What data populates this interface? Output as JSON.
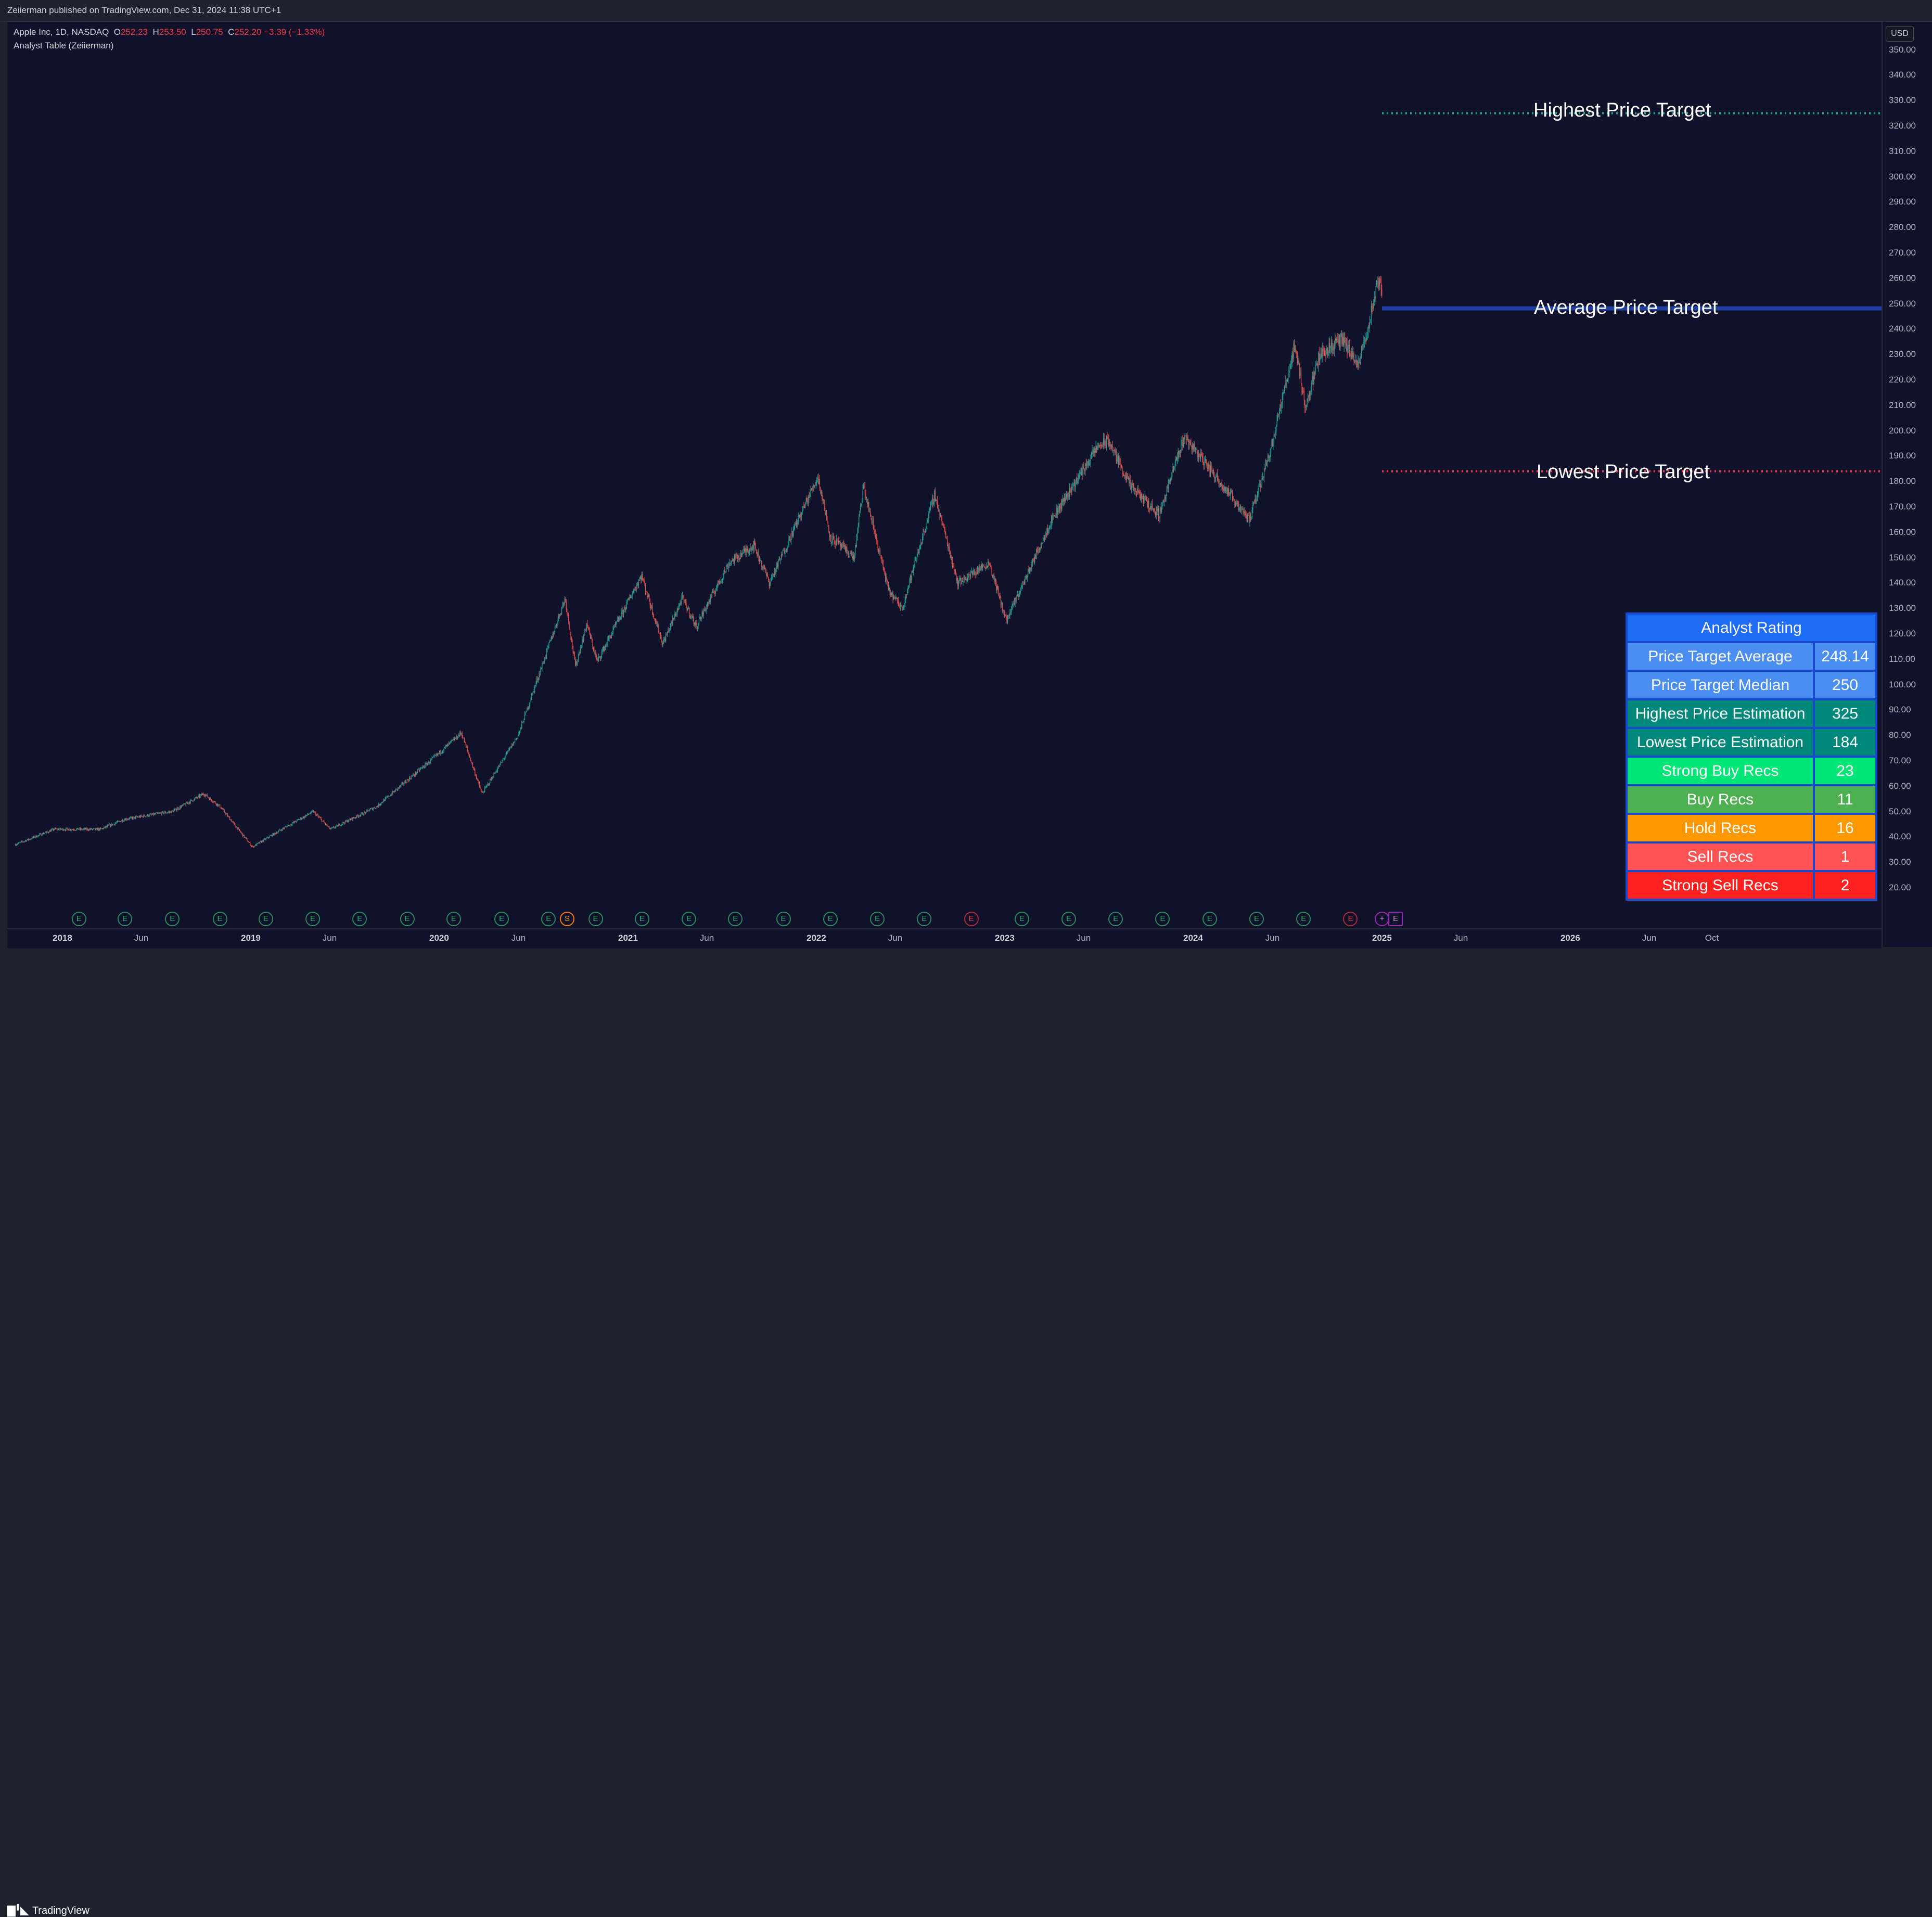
{
  "header": {
    "publish_line": "Zeiierman published on TradingView.com, Dec 31, 2024 11:38 UTC+1"
  },
  "legend": {
    "symbol": "Apple Inc, 1D, NASDAQ",
    "open_label": "O",
    "open": "252.23",
    "high_label": "H",
    "high": "253.50",
    "low_label": "L",
    "low": "250.75",
    "close_label": "C",
    "close": "252.20",
    "change": "−3.39 (−1.33%)",
    "indicator": "Analyst Table (Zeiierman)"
  },
  "price_scale": {
    "currency": "USD",
    "ticks": [
      "350.00",
      "340.00",
      "330.00",
      "320.00",
      "310.00",
      "300.00",
      "290.00",
      "280.00",
      "270.00",
      "260.00",
      "250.00",
      "240.00",
      "230.00",
      "220.00",
      "210.00",
      "200.00",
      "190.00",
      "180.00",
      "170.00",
      "160.00",
      "150.00",
      "140.00",
      "130.00",
      "120.00",
      "110.00",
      "100.00",
      "90.00",
      "80.00",
      "70.00",
      "60.00",
      "50.00",
      "40.00",
      "30.00",
      "20.00"
    ]
  },
  "time_axis": {
    "labels": [
      {
        "text": "2018",
        "year": true
      },
      {
        "text": "Jun",
        "year": false
      },
      {
        "text": "2019",
        "year": true
      },
      {
        "text": "Jun",
        "year": false
      },
      {
        "text": "2020",
        "year": true
      },
      {
        "text": "Jun",
        "year": false
      },
      {
        "text": "2021",
        "year": true
      },
      {
        "text": "Jun",
        "year": false
      },
      {
        "text": "2022",
        "year": true
      },
      {
        "text": "Jun",
        "year": false
      },
      {
        "text": "2023",
        "year": true
      },
      {
        "text": "Jun",
        "year": false
      },
      {
        "text": "2024",
        "year": true
      },
      {
        "text": "Jun",
        "year": false
      },
      {
        "text": "2025",
        "year": true
      },
      {
        "text": "Jun",
        "year": false
      },
      {
        "text": "2026",
        "year": true
      },
      {
        "text": "Jun",
        "year": false
      },
      {
        "text": "Oct",
        "year": false
      }
    ]
  },
  "targets": {
    "highest_label": "Highest Price Target",
    "average_label": "Average Price Target",
    "lowest_label": "Lowest Price Target",
    "highest_color": "#26a69a",
    "average_color": "#1f3fa0",
    "lowest_color": "#f23645"
  },
  "analyst_table": {
    "title": "Analyst Rating",
    "rows": [
      {
        "label": "Price Target Average",
        "value": "248.14",
        "color": "#4a8ef2"
      },
      {
        "label": "Price Target Median",
        "value": "250",
        "color": "#4a8ef2"
      },
      {
        "label": "Highest Price Estimation",
        "value": "325",
        "color": "#00897b"
      },
      {
        "label": "Lowest Price Estimation",
        "value": "184",
        "color": "#00897b"
      },
      {
        "label": "Strong Buy Recs",
        "value": "23",
        "color": "#00e676"
      },
      {
        "label": "Buy Recs",
        "value": "11",
        "color": "#4caf50"
      },
      {
        "label": "Hold Recs",
        "value": "16",
        "color": "#ff9800"
      },
      {
        "label": "Sell Recs",
        "value": "1",
        "color": "#ff5252"
      },
      {
        "label": "Strong Sell Recs",
        "value": "2",
        "color": "#ff2020"
      }
    ],
    "title_color": "#1e6cf5",
    "border_color": "#1848cc"
  },
  "events": {
    "earnings_letter": "E",
    "split_letter": "S",
    "dividend_letter": "+"
  },
  "chart_data": {
    "type": "candlestick",
    "title": "Apple Inc, 1D, NASDAQ",
    "ylim": [
      15,
      355
    ],
    "x_range": [
      "2017-10",
      "2026-11"
    ],
    "price_path": [
      [
        "2017-10-01",
        37
      ],
      [
        "2017-12-15",
        43
      ],
      [
        "2018-03-15",
        43
      ],
      [
        "2018-05-01",
        47
      ],
      [
        "2018-08-01",
        50
      ],
      [
        "2018-10-01",
        57
      ],
      [
        "2018-11-01",
        52
      ],
      [
        "2019-01-03",
        36
      ],
      [
        "2019-03-01",
        43
      ],
      [
        "2019-05-01",
        50
      ],
      [
        "2019-06-03",
        43
      ],
      [
        "2019-09-01",
        52
      ],
      [
        "2019-12-31",
        73
      ],
      [
        "2020-02-12",
        81
      ],
      [
        "2020-03-23",
        57
      ],
      [
        "2020-06-01",
        80
      ],
      [
        "2020-08-31",
        134
      ],
      [
        "2020-09-20",
        107
      ],
      [
        "2020-10-12",
        124
      ],
      [
        "2020-11-01",
        109
      ],
      [
        "2021-01-26",
        143
      ],
      [
        "2021-03-08",
        116
      ],
      [
        "2021-04-15",
        134
      ],
      [
        "2021-05-12",
        123
      ],
      [
        "2021-07-15",
        148
      ],
      [
        "2021-09-01",
        155
      ],
      [
        "2021-10-01",
        140
      ],
      [
        "2022-01-03",
        182
      ],
      [
        "2022-01-27",
        158
      ],
      [
        "2022-03-14",
        150
      ],
      [
        "2022-04-01",
        178
      ],
      [
        "2022-05-20",
        137
      ],
      [
        "2022-06-15",
        130
      ],
      [
        "2022-08-17",
        175
      ],
      [
        "2022-10-01",
        140
      ],
      [
        "2022-12-01",
        148
      ],
      [
        "2023-01-03",
        125
      ],
      [
        "2023-04-01",
        165
      ],
      [
        "2023-06-30",
        194
      ],
      [
        "2023-07-20",
        196
      ],
      [
        "2023-09-01",
        178
      ],
      [
        "2023-10-26",
        167
      ],
      [
        "2023-12-14",
        198
      ],
      [
        "2024-02-01",
        185
      ],
      [
        "2024-04-19",
        165
      ],
      [
        "2024-06-01",
        195
      ],
      [
        "2024-07-15",
        234
      ],
      [
        "2024-08-05",
        209
      ],
      [
        "2024-09-01",
        230
      ],
      [
        "2024-10-15",
        236
      ],
      [
        "2024-11-15",
        225
      ],
      [
        "2024-12-26",
        260
      ],
      [
        "2024-12-31",
        252
      ]
    ],
    "price_targets": {
      "highest": 325,
      "average": 248.14,
      "lowest": 184
    },
    "series": [
      {
        "name": "Highest Price Target",
        "value": 325
      },
      {
        "name": "Average Price Target",
        "value": 248.14
      },
      {
        "name": "Lowest Price Target",
        "value": 184
      }
    ],
    "up_color": "#26a69a",
    "down_color": "#ef5350",
    "grid": false
  }
}
